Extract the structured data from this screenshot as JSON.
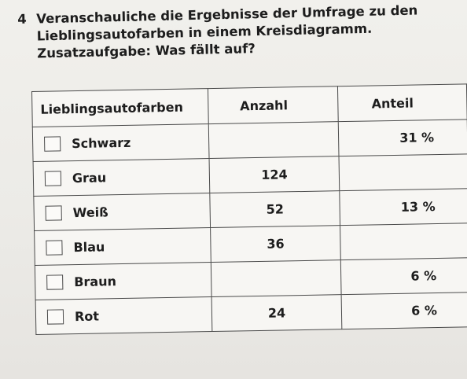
{
  "task": {
    "number": "4",
    "lines": [
      "Veranschauliche die Ergebnisse der Umfrage zu den",
      "Lieblingsautofarben in einem Kreisdiagramm.",
      "Zusatzaufgabe: Was fällt auf?"
    ]
  },
  "table": {
    "headers": [
      "Lieblingsautofarben",
      "Anzahl",
      "Anteil"
    ],
    "rows": [
      {
        "color": "Schwarz",
        "count": "",
        "share": "31 %"
      },
      {
        "color": "Grau",
        "count": "124",
        "share": ""
      },
      {
        "color": "Weiß",
        "count": "52",
        "share": "13 %"
      },
      {
        "color": "Blau",
        "count": "36",
        "share": ""
      },
      {
        "color": "Braun",
        "count": "",
        "share": "6 %"
      },
      {
        "color": "Rot",
        "count": "24",
        "share": "6 %"
      }
    ]
  }
}
